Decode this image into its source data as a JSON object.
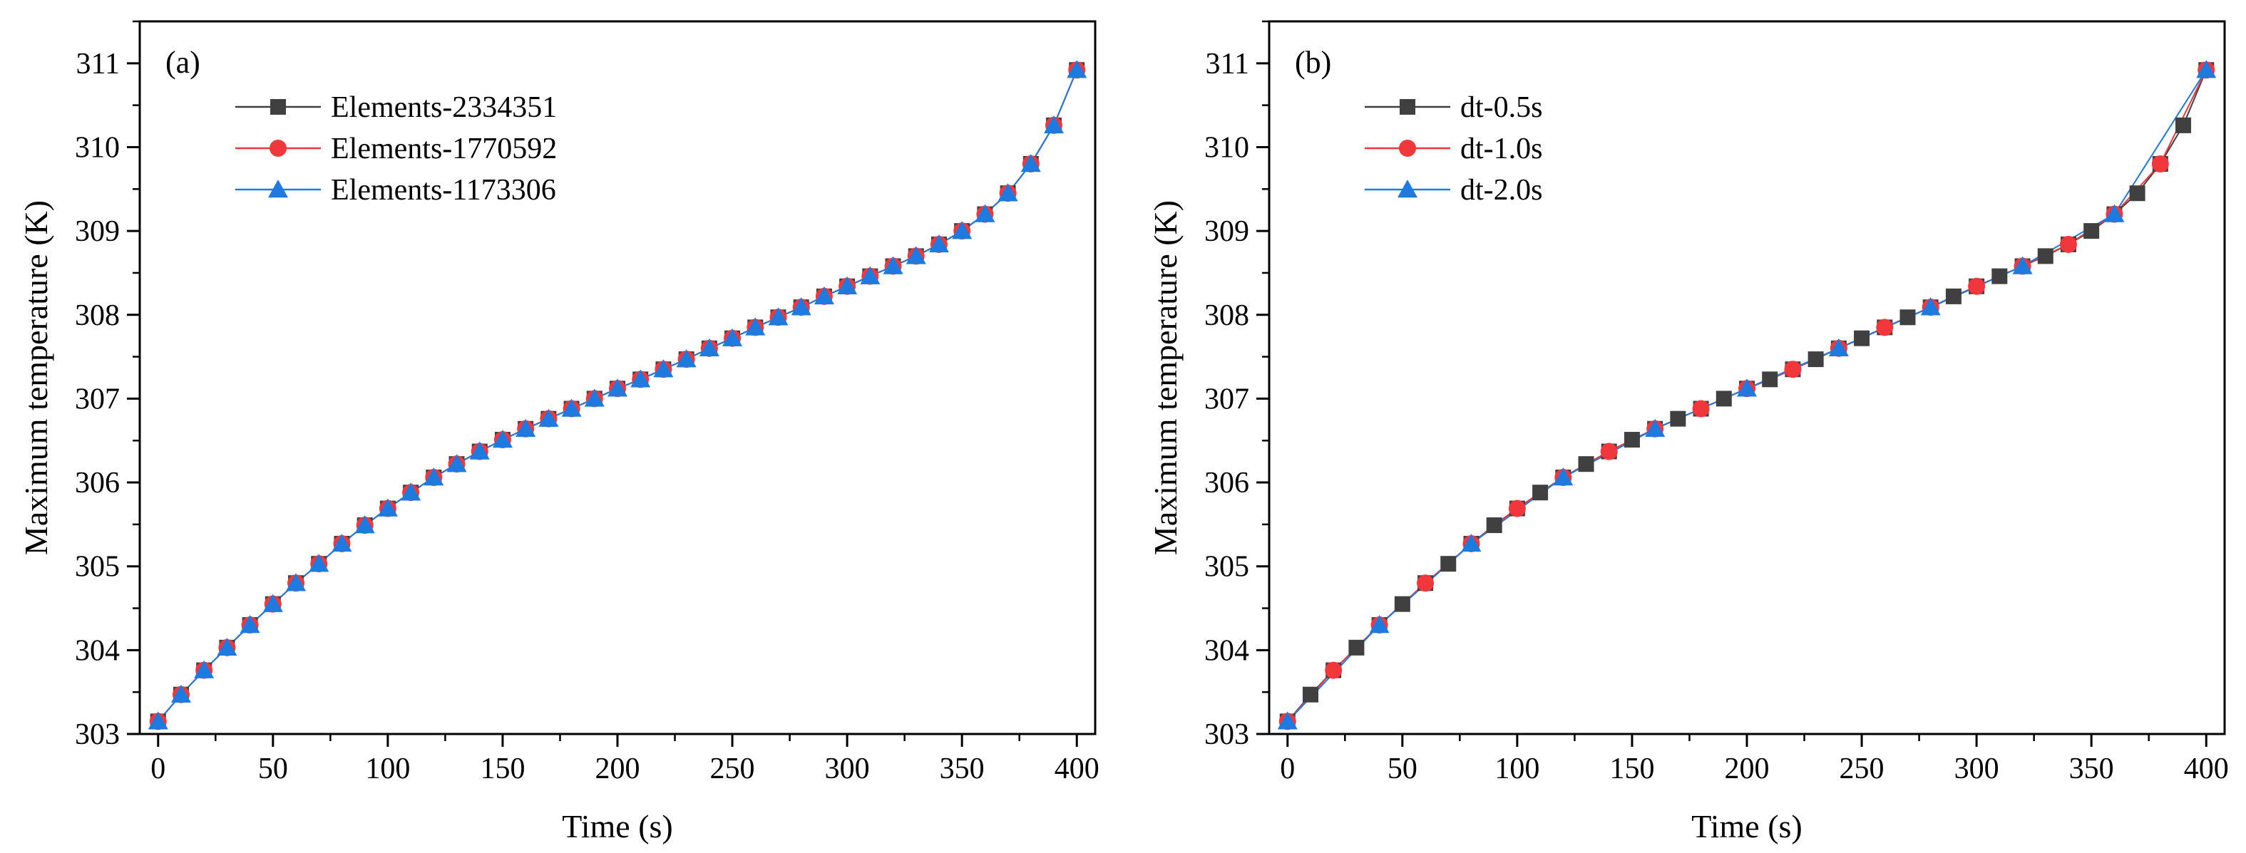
{
  "chart_data": [
    {
      "type": "line",
      "panel_label": "(a)",
      "xlabel": "Time (s)",
      "ylabel": "Maximum temperature (K)",
      "xlim": [
        -8,
        408
      ],
      "ylim": [
        303,
        311.5
      ],
      "xticks": [
        0,
        50,
        100,
        150,
        200,
        250,
        300,
        350,
        400
      ],
      "xtick_labels": [
        "0",
        "50",
        "100",
        "150",
        "200",
        "250",
        "300",
        "350",
        "400"
      ],
      "yticks": [
        303,
        304,
        305,
        306,
        307,
        308,
        309,
        310,
        311
      ],
      "ytick_labels": [
        "303",
        "304",
        "305",
        "306",
        "307",
        "308",
        "309",
        "310",
        "311"
      ],
      "legend_position": "top-left",
      "x": [
        0,
        10,
        20,
        30,
        40,
        50,
        60,
        70,
        80,
        90,
        100,
        110,
        120,
        130,
        140,
        150,
        160,
        170,
        180,
        190,
        200,
        210,
        220,
        230,
        240,
        250,
        260,
        270,
        280,
        290,
        300,
        310,
        320,
        330,
        340,
        350,
        360,
        370,
        380,
        390,
        400
      ],
      "series": [
        {
          "name": "Elements-2334351",
          "marker": "square",
          "color": "#404040",
          "line_color": "#404040",
          "x": [
            0,
            10,
            20,
            30,
            40,
            50,
            60,
            70,
            80,
            90,
            100,
            110,
            120,
            130,
            140,
            150,
            160,
            170,
            180,
            190,
            200,
            210,
            220,
            230,
            240,
            250,
            260,
            270,
            280,
            290,
            300,
            310,
            320,
            330,
            340,
            350,
            360,
            370,
            380,
            390,
            400
          ],
          "values": [
            303.15,
            303.47,
            303.76,
            304.03,
            304.3,
            304.55,
            304.8,
            305.03,
            305.27,
            305.49,
            305.69,
            305.88,
            306.06,
            306.22,
            306.37,
            306.51,
            306.64,
            306.76,
            306.88,
            307.0,
            307.12,
            307.23,
            307.35,
            307.47,
            307.6,
            307.72,
            307.85,
            307.97,
            308.09,
            308.22,
            308.34,
            308.46,
            308.58,
            308.7,
            308.84,
            309.0,
            309.2,
            309.45,
            309.8,
            310.26,
            310.92
          ]
        },
        {
          "name": "Elements-1770592",
          "marker": "circle",
          "color": "#f0383c",
          "line_color": "#f0383c",
          "x": [
            0,
            10,
            20,
            30,
            40,
            50,
            60,
            70,
            80,
            90,
            100,
            110,
            120,
            130,
            140,
            150,
            160,
            170,
            180,
            190,
            200,
            210,
            220,
            230,
            240,
            250,
            260,
            270,
            280,
            290,
            300,
            310,
            320,
            330,
            340,
            350,
            360,
            370,
            380,
            390,
            400
          ],
          "values": [
            303.15,
            303.47,
            303.76,
            304.03,
            304.3,
            304.55,
            304.8,
            305.03,
            305.27,
            305.49,
            305.69,
            305.88,
            306.06,
            306.22,
            306.37,
            306.51,
            306.64,
            306.76,
            306.88,
            307.0,
            307.12,
            307.23,
            307.35,
            307.47,
            307.6,
            307.72,
            307.85,
            307.97,
            308.09,
            308.22,
            308.34,
            308.46,
            308.58,
            308.7,
            308.84,
            309.0,
            309.2,
            309.45,
            309.8,
            310.26,
            310.92
          ]
        },
        {
          "name": "Elements-1173306",
          "marker": "triangle",
          "color": "#1f7ae0",
          "line_color": "#1f7ae0",
          "x": [
            0,
            10,
            20,
            30,
            40,
            50,
            60,
            70,
            80,
            90,
            100,
            110,
            120,
            130,
            140,
            150,
            160,
            170,
            180,
            190,
            200,
            210,
            220,
            230,
            240,
            250,
            260,
            270,
            280,
            290,
            300,
            310,
            320,
            330,
            340,
            350,
            360,
            370,
            380,
            390,
            400
          ],
          "values": [
            303.15,
            303.47,
            303.76,
            304.03,
            304.3,
            304.55,
            304.8,
            305.03,
            305.27,
            305.49,
            305.69,
            305.88,
            306.06,
            306.22,
            306.37,
            306.51,
            306.64,
            306.76,
            306.88,
            307.0,
            307.12,
            307.23,
            307.35,
            307.47,
            307.6,
            307.72,
            307.85,
            307.97,
            308.09,
            308.22,
            308.34,
            308.46,
            308.58,
            308.7,
            308.84,
            309.0,
            309.2,
            309.45,
            309.8,
            310.26,
            310.92
          ]
        }
      ]
    },
    {
      "type": "line",
      "panel_label": "(b)",
      "xlabel": "Time (s)",
      "ylabel": "Maximum temperature (K)",
      "xlim": [
        -8,
        408
      ],
      "ylim": [
        303,
        311.5
      ],
      "xticks": [
        0,
        50,
        100,
        150,
        200,
        250,
        300,
        350,
        400
      ],
      "xtick_labels": [
        "0",
        "50",
        "100",
        "150",
        "200",
        "250",
        "300",
        "350",
        "400"
      ],
      "yticks": [
        303,
        304,
        305,
        306,
        307,
        308,
        309,
        310,
        311
      ],
      "ytick_labels": [
        "303",
        "304",
        "305",
        "306",
        "307",
        "308",
        "309",
        "310",
        "311"
      ],
      "legend_position": "top-left",
      "series": [
        {
          "name": "dt-0.5s",
          "marker": "square",
          "color": "#404040",
          "line_color": "#404040",
          "x": [
            0,
            10,
            20,
            30,
            40,
            50,
            60,
            70,
            80,
            90,
            100,
            110,
            120,
            130,
            140,
            150,
            160,
            170,
            180,
            190,
            200,
            210,
            220,
            230,
            240,
            250,
            260,
            270,
            280,
            290,
            300,
            310,
            320,
            330,
            340,
            350,
            360,
            370,
            380,
            390,
            400
          ],
          "values": [
            303.15,
            303.47,
            303.76,
            304.03,
            304.3,
            304.55,
            304.8,
            305.03,
            305.27,
            305.49,
            305.69,
            305.88,
            306.06,
            306.22,
            306.37,
            306.51,
            306.64,
            306.76,
            306.88,
            307.0,
            307.12,
            307.23,
            307.35,
            307.47,
            307.6,
            307.72,
            307.85,
            307.97,
            308.09,
            308.22,
            308.34,
            308.46,
            308.58,
            308.7,
            308.84,
            309.0,
            309.2,
            309.45,
            309.8,
            310.26,
            310.92
          ]
        },
        {
          "name": "dt-1.0s",
          "marker": "circle",
          "color": "#f0383c",
          "line_color": "#f0383c",
          "x": [
            0,
            20,
            40,
            60,
            80,
            100,
            120,
            140,
            160,
            180,
            200,
            220,
            240,
            260,
            280,
            300,
            320,
            340,
            360,
            380,
            400
          ],
          "values": [
            303.15,
            303.76,
            304.3,
            304.8,
            305.27,
            305.69,
            306.06,
            306.37,
            306.64,
            306.88,
            307.12,
            307.35,
            307.6,
            307.85,
            308.09,
            308.34,
            308.58,
            308.84,
            309.2,
            309.8,
            310.92
          ]
        },
        {
          "name": "dt-2.0s",
          "marker": "triangle",
          "color": "#1f7ae0",
          "line_color": "#1f7ae0",
          "x": [
            0,
            40,
            80,
            120,
            160,
            200,
            240,
            280,
            320,
            360,
            400
          ],
          "values": [
            303.15,
            304.3,
            305.27,
            306.06,
            306.64,
            307.12,
            307.6,
            308.09,
            308.58,
            309.2,
            310.92
          ]
        }
      ]
    }
  ]
}
